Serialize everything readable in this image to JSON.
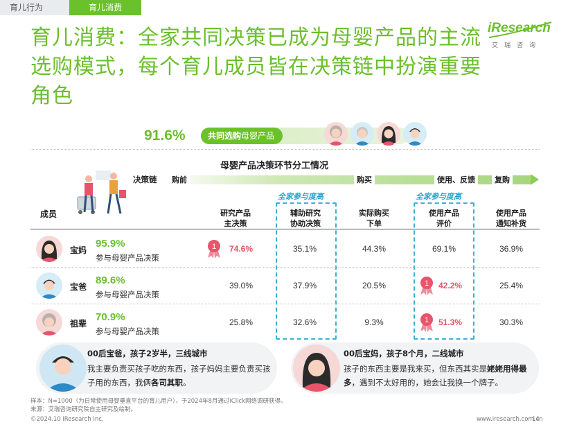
{
  "tabs": [
    {
      "label": "育儿行为",
      "active": false
    },
    {
      "label": "育儿消费",
      "active": true
    }
  ],
  "title": "育儿消费：全家共同决策已成为母婴产品的主流选购模式，每个育儿成员皆在决策链中扮演重要角色",
  "logo": {
    "word": "iResearch",
    "cn": "艾瑞咨询"
  },
  "banner": {
    "percent": "91.6%",
    "label_bold": "共同选购",
    "label_rest": "母婴产品"
  },
  "table": {
    "title": "母婴产品决策环节分工情况",
    "chain_label": "决策链",
    "stages": [
      "购前",
      "购买",
      "使用、反馈",
      "复购"
    ],
    "highlight_tag": "全家参与度高",
    "members_header": "成员",
    "columns": [
      {
        "line1": "研究产品",
        "line2": "主决策"
      },
      {
        "line1": "辅助研究",
        "line2": "协助决策"
      },
      {
        "line1": "实际购买",
        "line2": "下单"
      },
      {
        "line1": "使用产品",
        "line2": "评价"
      },
      {
        "line1": "使用产品",
        "line2": "通知补货"
      }
    ],
    "rows": [
      {
        "name": "宝妈",
        "percent": "95.9%",
        "desc": "参与母婴产品决策",
        "values": [
          "74.6%",
          "35.1%",
          "44.3%",
          "69.1%",
          "36.9%"
        ],
        "rank1": [
          0
        ]
      },
      {
        "name": "宝爸",
        "percent": "89.6%",
        "desc": "参与母婴产品决策",
        "values": [
          "39.0%",
          "37.9%",
          "20.5%",
          "42.2%",
          "25.4%"
        ],
        "rank1": [
          3
        ]
      },
      {
        "name": "祖辈",
        "percent": "70.9%",
        "desc": "参与母婴产品决策",
        "values": [
          "25.8%",
          "32.6%",
          "9.3%",
          "51.3%",
          "30.3%"
        ],
        "rank1": [
          3
        ]
      }
    ],
    "rank_badge": "1"
  },
  "quotes": [
    {
      "title": "00后宝爸，孩子2岁半，三线城市",
      "text_plain": "我主要负责买孩子吃的东西，孩子妈妈主要负责买孩子用的东西，我俩",
      "text_bold": "各司其职",
      "text_end": "。"
    },
    {
      "title": "00后宝妈，孩子8个月，二线城市",
      "text_plain": "孩子的东西主要是我来买，但东西其实是",
      "text_bold": "姥姥用得最多",
      "text_end": "，遇到不太好用的，她会让我换一个牌子。"
    }
  ],
  "footer": {
    "sample": "样本：N=1000（为日常使用母婴垂直平台的育儿用户），于2024年8月通过iClick网络调研获得。",
    "source": "来源：艾瑞咨询研究院自主研究及绘制。",
    "copyright": "©2024.10 iResearch Inc.",
    "url": "www.iresearch.com.cn",
    "page": "14"
  },
  "colors": {
    "brand_green": "#6bbf2c",
    "highlight_red": "#e7546b",
    "dash_blue": "#3bb0d6"
  }
}
